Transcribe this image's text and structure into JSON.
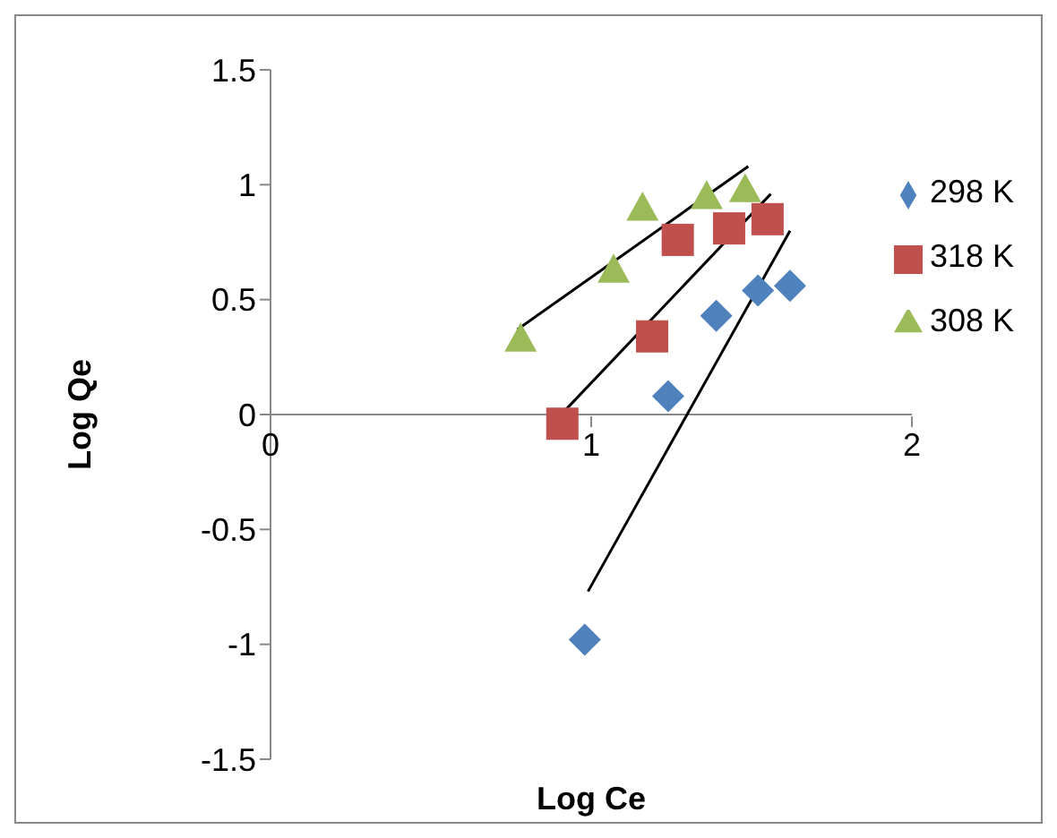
{
  "chart_data": {
    "type": "scatter",
    "xlabel": "Log Ce",
    "ylabel": "Log Qe",
    "xlim": [
      0,
      2
    ],
    "xticks": [
      0,
      1,
      2
    ],
    "ylim": [
      -1.5,
      1.5
    ],
    "yticks": [
      -1.5,
      -1,
      -0.5,
      0,
      0.5,
      1,
      1.5
    ],
    "grid": false,
    "legend": "right",
    "series": [
      {
        "name": "298 K",
        "color": "#4f81bd",
        "marker": "diamond",
        "x": [
          0.98,
          1.24,
          1.39,
          1.52,
          1.62
        ],
        "values": [
          -0.98,
          0.08,
          0.43,
          0.54,
          0.56
        ]
      },
      {
        "name": "318 K",
        "color": "#c0504d",
        "marker": "square",
        "x": [
          0.91,
          1.19,
          1.27,
          1.43,
          1.55
        ],
        "values": [
          -0.04,
          0.34,
          0.76,
          0.81,
          0.85
        ]
      },
      {
        "name": "308 K",
        "color": "#9bbb59",
        "marker": "triangle",
        "x": [
          0.78,
          1.07,
          1.16,
          1.36,
          1.48
        ],
        "values": [
          0.33,
          0.63,
          0.9,
          0.95,
          0.98
        ]
      },
      {
        "type": "line",
        "color": "#000000",
        "x": [
          0.99,
          1.62
        ],
        "values": [
          -0.77,
          0.8
        ]
      },
      {
        "type": "line",
        "color": "#000000",
        "x": [
          0.92,
          1.56
        ],
        "values": [
          0.02,
          0.96
        ]
      },
      {
        "type": "line",
        "color": "#000000",
        "x": [
          0.77,
          1.49
        ],
        "values": [
          0.37,
          1.08
        ]
      }
    ]
  }
}
